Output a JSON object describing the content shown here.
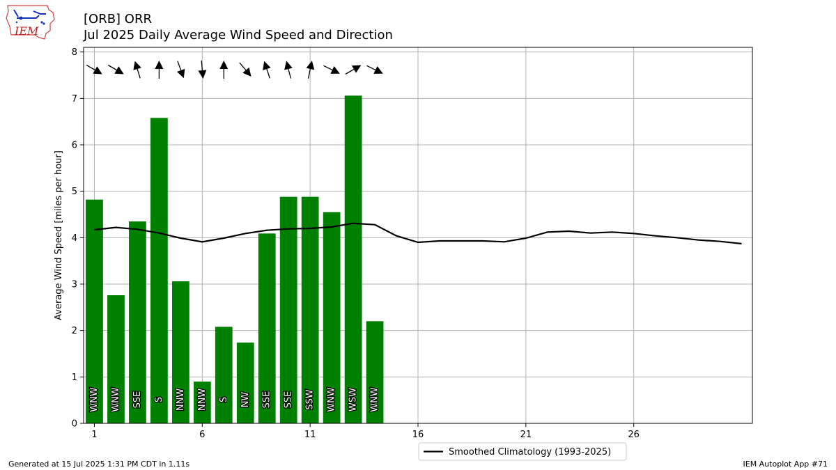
{
  "header": {
    "title_line1": "[ORB] ORR",
    "title_line2": "Jul 2025 Daily Average Wind Speed and Direction"
  },
  "logo": {
    "text": "IEM",
    "icon": "iem-iowa-logo-icon"
  },
  "footer": {
    "left": "Generated at 15 Jul 2025 1:31 PM CDT in 1.11s",
    "right": "IEM Autoplot App #71"
  },
  "colors": {
    "bar": "#008000",
    "climo_line": "#000000",
    "grid": "#b0b0b0"
  },
  "chart_data": {
    "type": "bar",
    "ylabel": "Average Wind Speed [miles per hour]",
    "xlabel": "",
    "xlim": [
      0.5,
      31.5
    ],
    "ylim": [
      0,
      8.1
    ],
    "xticks": [
      1,
      6,
      11,
      16,
      21,
      26
    ],
    "yticks": [
      0,
      1,
      2,
      3,
      4,
      5,
      6,
      7,
      8
    ],
    "grid": true,
    "legend": {
      "placement": "bottom-center",
      "entries": [
        "Smoothed Climatology (1993-2025)"
      ]
    },
    "days": [
      1,
      2,
      3,
      4,
      5,
      6,
      7,
      8,
      9,
      10,
      11,
      12,
      13,
      14
    ],
    "speeds": [
      4.82,
      2.76,
      4.35,
      6.58,
      3.06,
      0.9,
      2.08,
      1.74,
      4.09,
      4.88,
      4.88,
      4.55,
      7.06,
      2.2
    ],
    "directions": [
      "WNW",
      "WNW",
      "SSE",
      "S",
      "NNW",
      "NNW",
      "S",
      "NW",
      "SSE",
      "SSE",
      "SSW",
      "WNW",
      "WSW",
      "WNW"
    ],
    "arrow_from_degrees": [
      300,
      300,
      163,
      180,
      340,
      355,
      180,
      320,
      162,
      166,
      192,
      296,
      240,
      296
    ],
    "series": [
      {
        "name": "Smoothed Climatology (1993-2025)",
        "x": [
          1,
          2,
          3,
          4,
          5,
          6,
          7,
          8,
          9,
          10,
          11,
          12,
          13,
          14,
          15,
          16,
          17,
          18,
          19,
          20,
          21,
          22,
          23,
          24,
          25,
          26,
          27,
          28,
          29,
          30,
          31
        ],
        "values": [
          4.17,
          4.22,
          4.18,
          4.1,
          3.99,
          3.91,
          3.99,
          4.09,
          4.16,
          4.19,
          4.2,
          4.23,
          4.31,
          4.28,
          4.04,
          3.9,
          3.93,
          3.93,
          3.93,
          3.91,
          3.99,
          4.12,
          4.14,
          4.1,
          4.12,
          4.09,
          4.04,
          4.0,
          3.95,
          3.92,
          3.87
        ]
      }
    ]
  }
}
